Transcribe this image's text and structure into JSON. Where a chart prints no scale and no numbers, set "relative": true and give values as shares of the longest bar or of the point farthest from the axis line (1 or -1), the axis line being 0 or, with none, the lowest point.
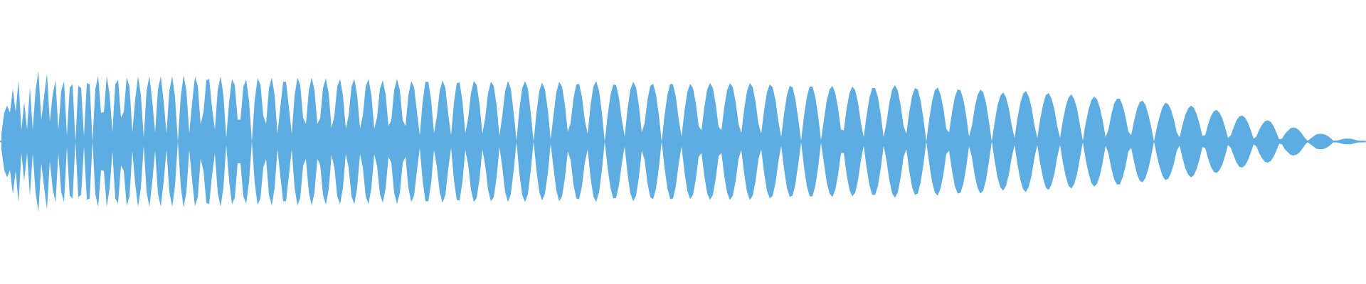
{
  "chart_data": {
    "type": "area",
    "relative": true,
    "ref_lines": [
      {
        "axis": "y",
        "value": 0,
        "color": "#5dade2"
      }
    ],
    "categories": [
      null,
      null,
      null,
      null,
      null,
      null,
      null,
      null,
      null,
      null,
      null,
      null,
      null,
      null,
      null,
      null,
      null,
      null,
      null,
      null,
      null,
      null,
      null,
      null,
      null,
      null,
      null,
      null,
      null,
      null,
      null,
      null,
      null,
      null,
      null,
      null,
      null,
      null,
      null,
      null,
      null,
      null,
      null,
      null,
      null,
      null,
      null,
      null,
      null,
      null,
      null,
      null,
      null,
      null,
      null,
      null,
      null,
      null,
      null,
      null,
      null,
      null,
      null,
      null,
      null,
      null,
      null,
      null,
      null,
      null,
      null,
      null,
      null,
      null,
      null,
      null,
      null,
      null,
      null,
      null,
      null,
      null,
      null,
      null,
      null,
      null,
      null,
      null,
      null,
      null,
      null,
      null,
      null,
      null,
      null,
      null,
      null,
      null,
      null,
      null,
      null,
      null,
      null,
      null,
      null,
      null,
      null,
      null,
      null,
      null,
      null,
      null,
      null,
      null,
      null,
      null,
      null,
      null,
      null,
      null,
      null,
      null,
      null,
      null,
      null,
      null,
      null,
      null,
      null,
      null,
      null,
      null,
      null,
      null,
      null,
      null,
      null,
      null,
      null,
      null,
      null,
      null,
      null,
      null,
      null,
      null,
      null,
      null,
      null,
      null,
      null,
      null,
      null,
      null,
      null,
      null,
      null,
      null,
      null,
      null,
      null,
      null,
      null,
      null,
      null,
      null,
      null,
      null,
      null,
      null,
      null,
      null,
      null,
      null,
      null,
      null,
      null,
      null,
      null,
      null,
      null,
      null,
      null,
      null,
      null,
      null,
      null,
      null,
      null,
      null,
      null,
      null,
      null,
      null,
      null,
      null,
      null,
      null,
      null,
      null,
      null,
      null,
      null,
      null,
      null,
      null,
      null,
      null,
      null,
      null,
      null,
      null,
      null,
      null,
      null,
      null,
      null,
      null,
      null,
      null,
      null,
      null,
      null,
      null,
      null,
      null,
      null,
      null,
      null,
      null,
      null,
      null,
      null,
      null,
      null,
      null,
      null,
      null,
      null,
      null,
      null,
      null,
      null,
      null,
      null,
      null,
      null,
      null,
      null,
      null,
      null,
      null,
      null,
      null,
      null,
      null,
      null,
      null,
      null,
      null,
      null,
      null,
      null,
      null,
      null,
      null,
      null,
      null,
      null,
      null,
      null,
      null,
      null,
      null,
      null,
      null,
      null,
      null,
      null,
      null,
      null,
      null,
      null,
      null,
      null,
      null,
      null,
      null,
      null,
      null,
      null,
      null,
      null,
      null,
      null,
      null,
      null,
      null,
      null,
      null,
      null,
      null,
      null,
      null,
      null,
      null,
      null,
      null,
      null,
      null,
      null,
      null,
      null,
      null,
      null,
      null,
      null,
      null,
      null,
      null,
      null,
      null,
      null,
      null,
      null,
      null,
      null,
      null,
      null,
      null,
      null,
      null,
      null,
      null,
      null,
      null,
      null,
      null,
      null,
      null,
      null,
      null,
      null,
      null,
      null,
      null,
      null,
      null,
      null,
      null,
      null,
      null,
      null,
      null,
      null,
      null,
      null,
      null,
      null,
      null,
      null,
      null,
      null,
      null,
      null,
      null,
      null,
      null,
      null,
      null,
      null,
      null,
      null,
      null,
      null,
      null,
      null,
      null,
      null,
      null,
      null,
      null,
      null,
      null,
      null,
      null,
      null,
      null,
      null,
      null,
      null,
      null,
      null,
      null,
      null,
      null,
      null,
      null,
      null,
      null,
      null,
      null,
      null,
      null,
      null,
      null,
      null,
      null,
      null,
      null,
      null,
      null,
      null,
      null,
      null,
      null,
      null,
      null,
      null,
      null,
      null,
      null,
      null,
      null,
      null,
      null,
      null,
      null,
      null,
      null,
      null,
      null,
      null,
      null,
      null,
      null,
      null,
      null,
      null,
      null,
      null,
      null,
      null,
      null,
      null,
      null,
      null,
      null,
      null,
      null,
      null,
      null,
      null,
      null,
      null,
      null,
      null,
      null,
      null,
      null,
      null,
      null,
      null,
      null,
      null,
      null,
      null,
      null,
      null,
      null,
      null,
      null,
      null,
      null,
      null,
      null,
      null,
      null,
      null,
      null
    ],
    "series": [
      {
        "color": "#5dade2",
        "values": [
          0.12,
          0.41,
          0.51,
          0.41,
          0.75,
          0.42,
          0.87,
          0.16,
          0.56,
          0.17,
          0.77,
          0.17,
          0.73,
          1.0,
          0.31,
          0.65,
          0.97,
          0.28,
          0.67,
          0.87,
          0.17,
          0.72,
          0.86,
          0.08,
          0.77,
          0.81,
          0,
          0.79,
          0.76,
          0.07,
          0.83,
          0.81,
          0,
          0.75,
          0.93,
          0.41,
          0.42,
          0.93,
          0.67,
          0.14,
          0.81,
          0.88,
          0.34,
          0.42,
          0.91,
          0.78,
          0.14,
          0.6,
          0.93,
          0.66,
          0.06,
          0.72,
          0.93,
          0.57,
          0.13,
          0.74,
          0.93,
          0.57,
          0.12,
          0.72,
          0.93,
          0.63,
          0,
          0.64,
          0.94,
          0.72,
          0.12,
          0.55,
          0.92,
          0.79,
          0.24,
          0.42,
          0.87,
          0.89,
          0.48,
          0.17,
          0.73,
          0.93,
          0.66,
          0.05,
          0.56,
          0.89,
          0.8,
          0.31,
          0.31,
          0.78,
          0.88,
          0.58,
          0,
          0.59,
          0.9,
          0.81,
          0.37,
          0.25,
          0.76,
          0.91,
          0.66,
          0.11,
          0.49,
          0.85,
          0.85,
          0.49,
          0.11,
          0.65,
          0.91,
          0.8,
          0.34,
          0.25,
          0.72,
          0.91,
          0.73,
          0.25,
          0.33,
          0.76,
          0.9,
          0.68,
          0.19,
          0.37,
          0.78,
          0.89,
          0.66,
          0.18,
          0.37,
          0.78,
          0.89,
          0.66,
          0.18,
          0.37,
          0.78,
          0.89,
          0.66,
          0.18,
          0.35,
          0.75,
          0.87,
          0.67,
          0.22,
          0.3,
          0.73,
          0.89,
          0.73,
          0.3,
          0.22,
          0.66,
          0.86,
          0.77,
          0.42,
          0.09,
          0.56,
          0.85,
          0.85,
          0.59,
          0.12,
          0.36,
          0.72,
          0.87,
          0.76,
          0.39,
          0.09,
          0.55,
          0.83,
          0.84,
          0.57,
          0.12,
          0.33,
          0.69,
          0.86,
          0.8,
          0.53,
          0.11,
          0.34,
          0.69,
          0.85,
          0.79,
          0.51,
          0.08,
          0.37,
          0.72,
          0.86,
          0.75,
          0.41,
          0.01,
          0.46,
          0.76,
          0.86,
          0.75,
          0.41,
          0,
          0.41,
          0.72,
          0.84,
          0.74,
          0.45,
          0.03,
          0.38,
          0.7,
          0.85,
          0.78,
          0.52,
          0.14,
          0.26,
          0.61,
          0.81,
          0.82,
          0.63,
          0.3,
          0.11,
          0.51,
          0.78,
          0.86,
          0.72,
          0.41,
          0,
          0.37,
          0.66,
          0.81,
          0.8,
          0.62,
          0.31,
          0.07,
          0.46,
          0.74,
          0.85,
          0.77,
          0.51,
          0.13,
          0.26,
          0.59,
          0.79,
          0.82,
          0.67,
          0.38,
          0,
          0.37,
          0.66,
          0.82,
          0.81,
          0.63,
          0.31,
          0.07,
          0.43,
          0.7,
          0.82,
          0.76,
          0.54,
          0.22,
          0.16,
          0.49,
          0.74,
          0.83,
          0.76,
          0.53,
          0.21,
          0.16,
          0.49,
          0.73,
          0.83,
          0.77,
          0.56,
          0.25,
          0.12,
          0.46,
          0.72,
          0.83,
          0.77,
          0.56,
          0.25,
          0.11,
          0.45,
          0.7,
          0.81,
          0.77,
          0.59,
          0.29,
          0.06,
          0.39,
          0.66,
          0.79,
          0.77,
          0.6,
          0.32,
          0.01,
          0.36,
          0.63,
          0.78,
          0.78,
          0.63,
          0.36,
          0.02,
          0.3,
          0.58,
          0.74,
          0.79,
          0.69,
          0.47,
          0.17,
          0.16,
          0.47,
          0.69,
          0.78,
          0.73,
          0.55,
          0.27,
          0.06,
          0.37,
          0.62,
          0.76,
          0.76,
          0.63,
          0.38,
          0.06,
          0.27,
          0.55,
          0.74,
          0.8,
          0.72,
          0.51,
          0.22,
          0.11,
          0.42,
          0.65,
          0.76,
          0.74,
          0.58,
          0.32,
          0,
          0.31,
          0.57,
          0.73,
          0.77,
          0.67,
          0.47,
          0.18,
          0.13,
          0.41,
          0.63,
          0.74,
          0.73,
          0.6,
          0.37,
          0.07,
          0.22,
          0.48,
          0.66,
          0.74,
          0.7,
          0.54,
          0.29,
          0,
          0.27,
          0.51,
          0.65,
          0.7,
          0.63,
          0.47,
          0.23,
          0.05,
          0.32,
          0.54,
          0.68,
          0.72,
          0.64,
          0.48,
          0.23,
          0.05,
          0.31,
          0.52,
          0.66,
          0.69,
          0.61,
          0.46,
          0.22,
          0.05,
          0.3,
          0.5,
          0.63,
          0.67,
          0.6,
          0.46,
          0.23,
          0.01,
          0.26,
          0.45,
          0.59,
          0.64,
          0.6,
          0.48,
          0.29,
          0.06,
          0.17,
          0.38,
          0.54,
          0.61,
          0.61,
          0.51,
          0.35,
          0.14,
          0.09,
          0.29,
          0.46,
          0.56,
          0.58,
          0.52,
          0.39,
          0.21,
          0,
          0.2,
          0.36,
          0.49,
          0.55,
          0.53,
          0.45,
          0.31,
          0.13,
          0.06,
          0.23,
          0.38,
          0.47,
          0.51,
          0.48,
          0.39,
          0.25,
          0.08,
          0.09,
          0.24,
          0.36,
          0.43,
          0.45,
          0.41,
          0.33,
          0.2,
          0.05,
          0.09,
          0.2,
          0.3,
          0.36,
          0.37,
          0.34,
          0.27,
          0.16,
          0.04,
          0.07,
          0.17,
          0.24,
          0.29,
          0.3,
          0.28,
          0.22,
          0.13,
          0.03,
          0.04,
          0.11,
          0.15,
          0.19,
          0.2,
          0.19,
          0.16,
          0.11,
          0.05,
          0.01,
          0.04,
          0.07,
          0.1,
          0.11,
          0.11,
          0.1,
          0.08,
          0.05,
          0.01,
          0.01,
          0.02,
          0.03,
          0.04,
          0.04,
          0.04,
          0.03,
          0.02,
          0.01,
          0.01,
          0.01
        ]
      },
      {
        "color": "#5dade2",
        "values": [
          -0.12,
          -0.41,
          -0.51,
          -0.41,
          -0.75,
          -0.42,
          -0.87,
          -0.16,
          -0.56,
          -0.17,
          -0.77,
          -0.17,
          -0.73,
          -1.0,
          -0.31,
          -0.65,
          -0.97,
          -0.28,
          -0.67,
          -0.87,
          -0.17,
          -0.72,
          -0.86,
          -0.08,
          -0.77,
          -0.81,
          0,
          -0.79,
          -0.76,
          -0.07,
          -0.83,
          -0.81,
          0,
          -0.75,
          -0.93,
          -0.41,
          -0.42,
          -0.93,
          -0.67,
          -0.14,
          -0.81,
          -0.88,
          -0.34,
          -0.42,
          -0.91,
          -0.78,
          -0.14,
          -0.6,
          -0.93,
          -0.66,
          -0.06,
          -0.72,
          -0.93,
          -0.57,
          -0.13,
          -0.74,
          -0.93,
          -0.57,
          -0.12,
          -0.72,
          -0.93,
          -0.63,
          0,
          -0.64,
          -0.94,
          -0.72,
          -0.12,
          -0.55,
          -0.92,
          -0.79,
          -0.24,
          -0.42,
          -0.87,
          -0.89,
          -0.48,
          -0.17,
          -0.73,
          -0.93,
          -0.66,
          -0.05,
          -0.56,
          -0.89,
          -0.8,
          -0.31,
          -0.31,
          -0.78,
          -0.88,
          -0.58,
          0,
          -0.59,
          -0.9,
          -0.81,
          -0.37,
          -0.25,
          -0.76,
          -0.91,
          -0.66,
          -0.11,
          -0.49,
          -0.85,
          -0.85,
          -0.49,
          -0.11,
          -0.65,
          -0.91,
          -0.8,
          -0.34,
          -0.25,
          -0.72,
          -0.91,
          -0.73,
          -0.25,
          -0.33,
          -0.76,
          -0.9,
          -0.68,
          -0.19,
          -0.37,
          -0.78,
          -0.89,
          -0.66,
          -0.18,
          -0.37,
          -0.78,
          -0.89,
          -0.66,
          -0.18,
          -0.37,
          -0.78,
          -0.89,
          -0.66,
          -0.18,
          -0.35,
          -0.75,
          -0.87,
          -0.67,
          -0.22,
          -0.3,
          -0.73,
          -0.89,
          -0.73,
          -0.3,
          -0.22,
          -0.66,
          -0.86,
          -0.77,
          -0.42,
          -0.09,
          -0.56,
          -0.85,
          -0.85,
          -0.59,
          -0.12,
          -0.36,
          -0.72,
          -0.87,
          -0.76,
          -0.39,
          -0.09,
          -0.55,
          -0.83,
          -0.84,
          -0.57,
          -0.12,
          -0.33,
          -0.69,
          -0.86,
          -0.8,
          -0.53,
          -0.11,
          -0.34,
          -0.69,
          -0.85,
          -0.79,
          -0.51,
          -0.08,
          -0.37,
          -0.72,
          -0.86,
          -0.75,
          -0.41,
          -0.01,
          -0.46,
          -0.76,
          -0.86,
          -0.75,
          -0.41,
          0,
          -0.41,
          -0.72,
          -0.84,
          -0.74,
          -0.45,
          -0.03,
          -0.38,
          -0.7,
          -0.85,
          -0.78,
          -0.52,
          -0.14,
          -0.26,
          -0.61,
          -0.81,
          -0.82,
          -0.63,
          -0.3,
          -0.11,
          -0.51,
          -0.78,
          -0.86,
          -0.72,
          -0.41,
          0,
          -0.37,
          -0.66,
          -0.81,
          -0.8,
          -0.62,
          -0.31,
          -0.07,
          -0.46,
          -0.74,
          -0.85,
          -0.77,
          -0.51,
          -0.13,
          -0.26,
          -0.59,
          -0.79,
          -0.82,
          -0.67,
          -0.38,
          0,
          -0.37,
          -0.66,
          -0.82,
          -0.81,
          -0.63,
          -0.31,
          -0.07,
          -0.43,
          -0.7,
          -0.82,
          -0.76,
          -0.54,
          -0.22,
          -0.16,
          -0.49,
          -0.74,
          -0.83,
          -0.76,
          -0.53,
          -0.21,
          -0.16,
          -0.49,
          -0.73,
          -0.83,
          -0.77,
          -0.56,
          -0.25,
          -0.12,
          -0.46,
          -0.72,
          -0.83,
          -0.77,
          -0.56,
          -0.25,
          -0.11,
          -0.45,
          -0.7,
          -0.81,
          -0.77,
          -0.59,
          -0.29,
          -0.06,
          -0.39,
          -0.66,
          -0.79,
          -0.77,
          -0.6,
          -0.32,
          -0.01,
          -0.36,
          -0.63,
          -0.78,
          -0.78,
          -0.63,
          -0.36,
          -0.02,
          -0.3,
          -0.58,
          -0.74,
          -0.79,
          -0.69,
          -0.47,
          -0.17,
          -0.16,
          -0.47,
          -0.69,
          -0.78,
          -0.73,
          -0.55,
          -0.27,
          -0.06,
          -0.37,
          -0.62,
          -0.76,
          -0.76,
          -0.63,
          -0.38,
          -0.06,
          -0.27,
          -0.55,
          -0.74,
          -0.8,
          -0.72,
          -0.51,
          -0.22,
          -0.11,
          -0.42,
          -0.65,
          -0.76,
          -0.74,
          -0.58,
          -0.32,
          0,
          -0.31,
          -0.57,
          -0.73,
          -0.77,
          -0.67,
          -0.47,
          -0.18,
          -0.13,
          -0.41,
          -0.63,
          -0.74,
          -0.73,
          -0.6,
          -0.37,
          -0.07,
          -0.22,
          -0.48,
          -0.66,
          -0.74,
          -0.7,
          -0.54,
          -0.29,
          0,
          -0.27,
          -0.51,
          -0.65,
          -0.7,
          -0.63,
          -0.47,
          -0.23,
          -0.05,
          -0.32,
          -0.54,
          -0.68,
          -0.72,
          -0.64,
          -0.48,
          -0.23,
          -0.05,
          -0.31,
          -0.52,
          -0.66,
          -0.69,
          -0.61,
          -0.46,
          -0.22,
          -0.05,
          -0.3,
          -0.5,
          -0.63,
          -0.67,
          -0.6,
          -0.46,
          -0.23,
          -0.01,
          -0.26,
          -0.45,
          -0.59,
          -0.64,
          -0.6,
          -0.48,
          -0.29,
          -0.06,
          -0.17,
          -0.38,
          -0.54,
          -0.61,
          -0.61,
          -0.51,
          -0.35,
          -0.14,
          -0.09,
          -0.29,
          -0.46,
          -0.56,
          -0.58,
          -0.52,
          -0.39,
          -0.21,
          0,
          -0.2,
          -0.36,
          -0.49,
          -0.55,
          -0.53,
          -0.45,
          -0.31,
          -0.13,
          -0.06,
          -0.23,
          -0.38,
          -0.47,
          -0.51,
          -0.48,
          -0.39,
          -0.25,
          -0.08,
          -0.09,
          -0.24,
          -0.36,
          -0.43,
          -0.45,
          -0.41,
          -0.33,
          -0.2,
          -0.05,
          -0.09,
          -0.2,
          -0.3,
          -0.36,
          -0.37,
          -0.34,
          -0.27,
          -0.16,
          -0.04,
          -0.07,
          -0.17,
          -0.24,
          -0.29,
          -0.3,
          -0.28,
          -0.22,
          -0.13,
          -0.03,
          -0.04,
          -0.11,
          -0.15,
          -0.19,
          -0.2,
          -0.19,
          -0.16,
          -0.11,
          -0.05,
          -0.01,
          -0.04,
          -0.07,
          -0.1,
          -0.11,
          -0.11,
          -0.1,
          -0.08,
          -0.05,
          -0.01,
          -0.01,
          -0.02,
          -0.03,
          -0.04,
          -0.04,
          -0.04,
          -0.03,
          -0.02,
          -0.01,
          -0.01,
          -0.01
        ]
      }
    ]
  }
}
